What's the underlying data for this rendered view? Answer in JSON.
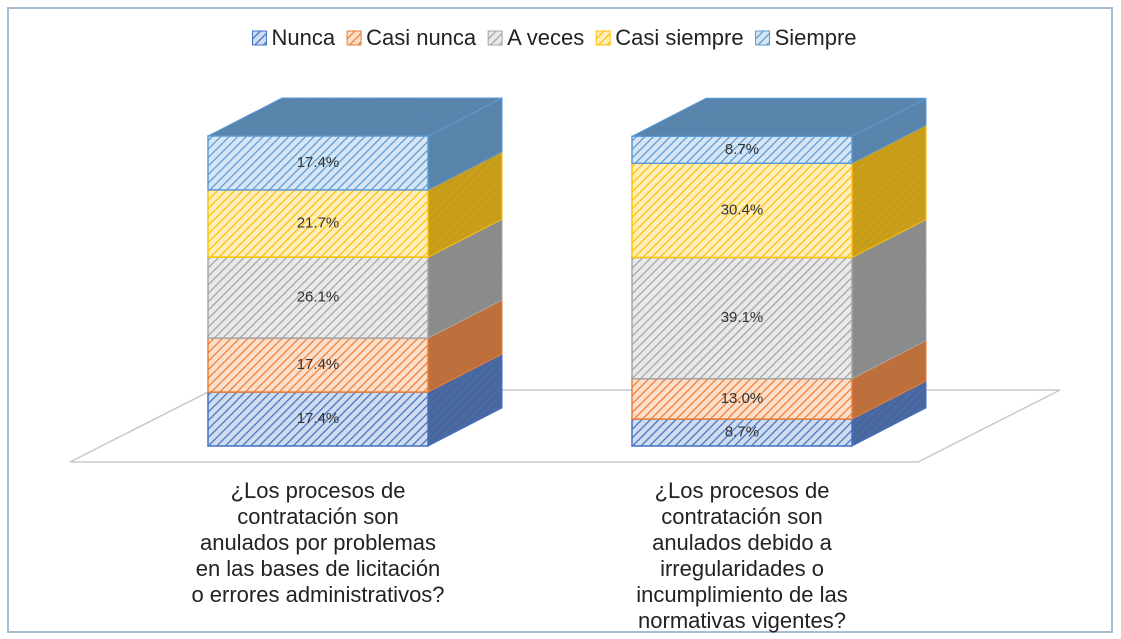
{
  "chart_data": {
    "type": "bar3d_stacked",
    "categories": [
      "¿Los procesos de\ncontratación son\nanulados por problemas\nen las bases de licitación\no errores administrativos?",
      "¿Los procesos de\ncontratación son\nanulados debido a\nirregularidades o\nincumplimiento de las\nnormativas vigentes?"
    ],
    "series": [
      {
        "name": "Nunca",
        "color": "#4472c4",
        "values": [
          17.4,
          8.7
        ],
        "value_labels": [
          "17.4%",
          "8.7%"
        ]
      },
      {
        "name": "Casi nunca",
        "color": "#ed7d31",
        "values": [
          17.4,
          13.0
        ],
        "value_labels": [
          "17.4%",
          "13.0%"
        ]
      },
      {
        "name": "A veces",
        "color": "#a5a5a5",
        "values": [
          26.1,
          39.1
        ],
        "value_labels": [
          "26.1%",
          "39.1%"
        ]
      },
      {
        "name": "Casi siempre",
        "color": "#ffc000",
        "values": [
          21.7,
          30.4
        ],
        "value_labels": [
          "21.7%",
          "30.4%"
        ]
      },
      {
        "name": "Siempre",
        "color": "#5b9bd5",
        "values": [
          17.4,
          8.7
        ],
        "value_labels": [
          "17.4%",
          "8.7%"
        ]
      }
    ],
    "legend": "top"
  }
}
